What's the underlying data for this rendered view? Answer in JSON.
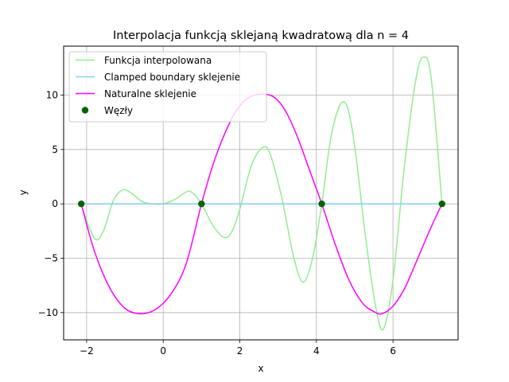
{
  "chart_data": {
    "type": "line",
    "title": "Interpolacja funkcją sklejaną kwadratową dla n = 4",
    "xlabel": "x",
    "ylabel": "y",
    "xlim": [
      -2.6,
      7.7
    ],
    "ylim": [
      -12.5,
      14.5
    ],
    "xticks": [
      -2,
      0,
      2,
      4,
      6
    ],
    "yticks": [
      -10,
      -5,
      0,
      5,
      10
    ],
    "xtick_labels": [
      "−2",
      "0",
      "2",
      "4",
      "6"
    ],
    "ytick_labels": [
      "−10",
      "−5",
      "0",
      "5",
      "10"
    ],
    "grid": true,
    "legend_position": "upper-left",
    "nodes": [
      [
        -2.14,
        0
      ],
      [
        1.0,
        0
      ],
      [
        4.14,
        0
      ],
      [
        7.28,
        0
      ]
    ],
    "series": [
      {
        "name": "Funkcja interpolowana",
        "kind": "line",
        "color": "#90ee90",
        "points": [
          [
            -2.14,
            0
          ],
          [
            -1.95,
            -2.0
          ],
          [
            -1.75,
            -3.3
          ],
          [
            -1.55,
            -2.4
          ],
          [
            -1.3,
            0.3
          ],
          [
            -1.05,
            1.3
          ],
          [
            -0.8,
            0.9
          ],
          [
            -0.55,
            0.2
          ],
          [
            -0.3,
            0.0
          ],
          [
            0.0,
            0.0
          ],
          [
            0.3,
            0.4
          ],
          [
            0.6,
            1.1
          ],
          [
            0.75,
            1.05
          ],
          [
            1.0,
            0.0
          ],
          [
            1.3,
            -2.0
          ],
          [
            1.6,
            -3.1
          ],
          [
            1.8,
            -2.5
          ],
          [
            2.0,
            -0.5
          ],
          [
            2.3,
            3.5
          ],
          [
            2.6,
            5.2
          ],
          [
            2.8,
            4.5
          ],
          [
            3.1,
            0.5
          ],
          [
            3.4,
            -4.8
          ],
          [
            3.65,
            -7.2
          ],
          [
            3.9,
            -5.0
          ],
          [
            4.14,
            0.0
          ],
          [
            4.4,
            6.5
          ],
          [
            4.7,
            9.4
          ],
          [
            4.95,
            6.5
          ],
          [
            5.3,
            -3.5
          ],
          [
            5.55,
            -9.5
          ],
          [
            5.75,
            -11.5
          ],
          [
            6.0,
            -7.0
          ],
          [
            6.3,
            3.5
          ],
          [
            6.6,
            11.5
          ],
          [
            6.8,
            13.5
          ],
          [
            7.0,
            11.5
          ],
          [
            7.28,
            0.0
          ]
        ]
      },
      {
        "name": "Clamped boundary sklejenie",
        "kind": "line",
        "color": "#87ceeb",
        "points": [
          [
            -2.14,
            0
          ],
          [
            7.28,
            0
          ]
        ]
      },
      {
        "name": "Naturalne sklejenie",
        "kind": "line",
        "color": "#ff00ff",
        "points": [
          [
            -2.14,
            0
          ],
          [
            -1.8,
            -4.3
          ],
          [
            -1.4,
            -7.7
          ],
          [
            -1.0,
            -9.6
          ],
          [
            -0.6,
            -10.1
          ],
          [
            -0.2,
            -9.7
          ],
          [
            0.2,
            -8.3
          ],
          [
            0.6,
            -5.5
          ],
          [
            1.0,
            0.0
          ],
          [
            1.3,
            3.6
          ],
          [
            1.6,
            6.4
          ],
          [
            1.9,
            8.5
          ],
          [
            2.2,
            9.7
          ],
          [
            2.57,
            10.1
          ],
          [
            2.9,
            9.8
          ],
          [
            3.2,
            8.5
          ],
          [
            3.5,
            6.2
          ],
          [
            3.8,
            3.3
          ],
          [
            4.14,
            0.0
          ],
          [
            4.5,
            -3.8
          ],
          [
            4.85,
            -7.0
          ],
          [
            5.2,
            -9.1
          ],
          [
            5.5,
            -9.9
          ],
          [
            5.71,
            -10.1
          ],
          [
            6.0,
            -9.4
          ],
          [
            6.3,
            -7.8
          ],
          [
            6.6,
            -5.4
          ],
          [
            6.95,
            -2.5
          ],
          [
            7.28,
            0.0
          ]
        ]
      },
      {
        "name": "Węzły",
        "kind": "markers",
        "color": "#006400",
        "points": [
          [
            -2.14,
            0
          ],
          [
            1.0,
            0
          ],
          [
            4.14,
            0
          ],
          [
            7.28,
            0
          ]
        ]
      }
    ]
  }
}
